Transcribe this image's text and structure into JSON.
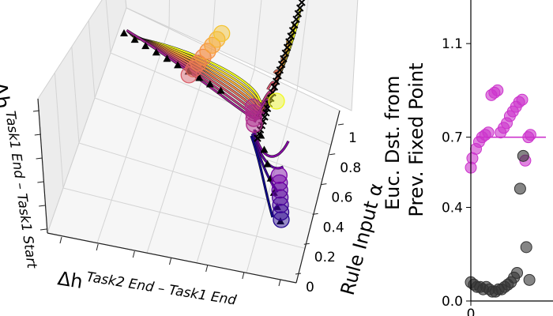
{
  "chart_data": [
    {
      "type": "3d-line",
      "title": "",
      "axes": {
        "x_label_base": "Δh",
        "x_label_sup": "Task2 End – Task1 End",
        "y_label_base": "Δh",
        "y_label_sup": "Task1 End – Task1 Start",
        "z_label": "Rule Input α"
      },
      "z_ticks": [
        "0",
        "0.2",
        "0.4",
        "0.6",
        "0.8",
        "1"
      ],
      "trajectories": {
        "count": 12,
        "colormap": [
          "#0d0887",
          "#7e03a8",
          "#cc4778",
          "#f89540",
          "#f0f921"
        ]
      },
      "markers": {
        "triangle_count": 17,
        "x_count": 27,
        "circle_count": 20
      }
    },
    {
      "type": "scatter",
      "title": "",
      "ylabel": [
        "Euc. Dst. from",
        "Prev. Fixed Point"
      ],
      "y_ticks": [
        "0.0",
        "0.4",
        "0.7",
        "1.1"
      ],
      "x_ticks": [
        "0"
      ],
      "ylim": [
        0.0,
        1.32
      ],
      "xlim": [
        0,
        16
      ],
      "threshold": 0.7,
      "series": [
        {
          "color": "#cc33cc",
          "x": [
            0.0,
            0.3,
            1.0,
            1.6,
            2.2,
            2.8,
            3.4,
            4.0,
            4.6,
            5.2,
            5.8,
            6.4,
            7.0,
            7.6,
            8.2,
            8.8,
            9.4,
            10.0,
            10.6,
            11.2,
            11.6
          ],
          "y": [
            0.57,
            0.61,
            0.65,
            0.68,
            0.7,
            0.71,
            0.72,
            0.88,
            0.89,
            0.9,
            0.72,
            0.74,
            0.76,
            0.79,
            0.81,
            0.83,
            0.85,
            0.86,
            0.6,
            0.7,
            0.71
          ]
        },
        {
          "color": "#333333",
          "x": [
            0.0,
            0.6,
            1.2,
            1.8,
            2.4,
            3.0,
            3.6,
            4.2,
            4.8,
            5.4,
            6.0,
            6.6,
            7.2,
            7.8,
            8.4,
            9.0,
            9.6,
            10.2,
            10.8,
            11.4
          ],
          "y": [
            0.08,
            0.07,
            0.06,
            0.06,
            0.05,
            0.06,
            0.05,
            0.04,
            0.04,
            0.05,
            0.05,
            0.06,
            0.07,
            0.08,
            0.1,
            0.12,
            0.48,
            0.62,
            0.23,
            0.09
          ]
        }
      ]
    }
  ]
}
